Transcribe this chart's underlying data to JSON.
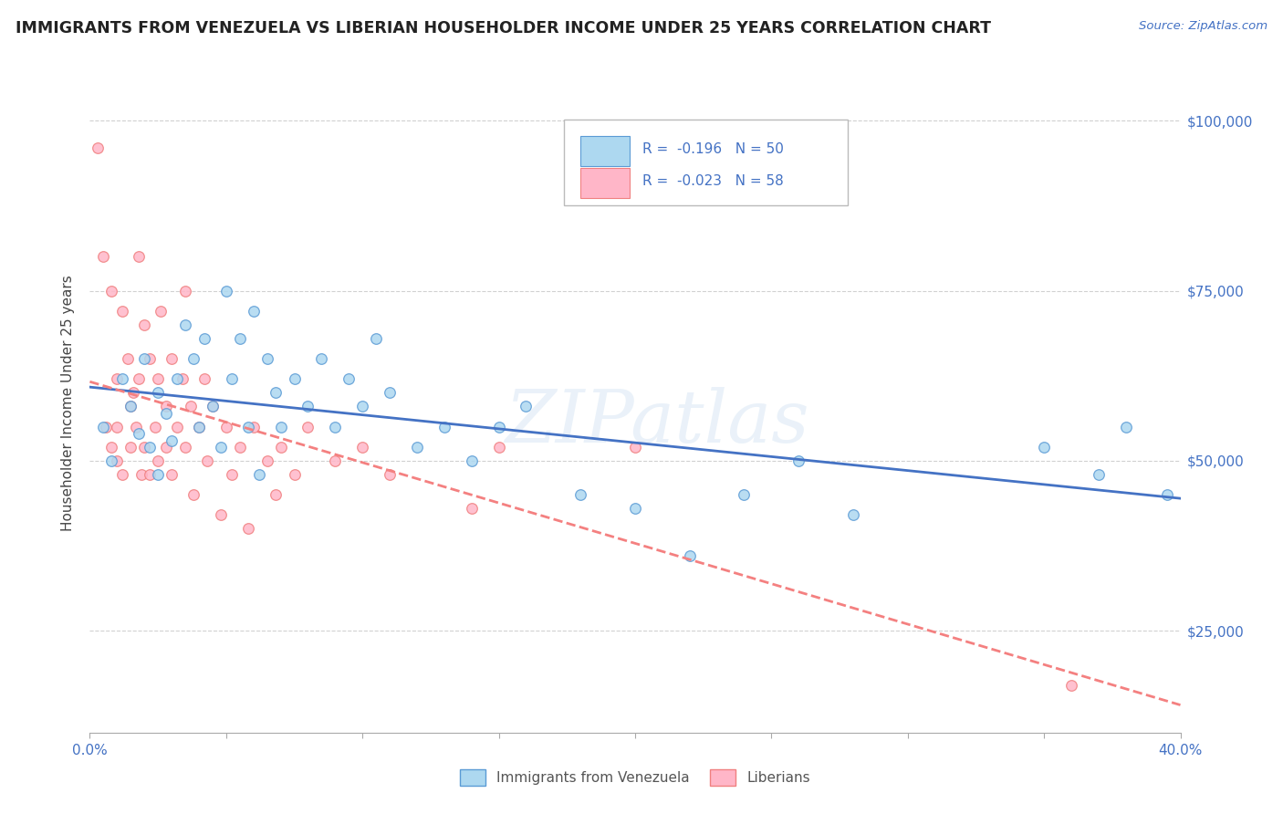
{
  "title": "IMMIGRANTS FROM VENEZUELA VS LIBERIAN HOUSEHOLDER INCOME UNDER 25 YEARS CORRELATION CHART",
  "source": "Source: ZipAtlas.com",
  "ylabel": "Householder Income Under 25 years",
  "xlim": [
    0.0,
    0.4
  ],
  "ylim": [
    10000,
    107000
  ],
  "yticks": [
    25000,
    50000,
    75000,
    100000
  ],
  "ytick_labels": [
    "$25,000",
    "$50,000",
    "$75,000",
    "$100,000"
  ],
  "xticks": [
    0.0,
    0.05,
    0.1,
    0.15,
    0.2,
    0.25,
    0.3,
    0.35,
    0.4
  ],
  "xtick_labels": [
    "0.0%",
    "",
    "",
    "",
    "",
    "",
    "",
    "",
    "40.0%"
  ],
  "background_color": "#ffffff",
  "grid_color": "#cccccc",
  "watermark": "ZIPatlas",
  "R_venezuela": -0.196,
  "N_venezuela": 50,
  "R_liberian": -0.023,
  "N_liberian": 58,
  "color_venezuela": "#add8f0",
  "color_liberian": "#ffb6c8",
  "edge_color_venezuela": "#5b9bd5",
  "edge_color_liberian": "#f08080",
  "line_color_venezuela": "#4472C4",
  "line_color_liberian": "#f48080",
  "venezuela_x": [
    0.005,
    0.008,
    0.012,
    0.015,
    0.018,
    0.02,
    0.022,
    0.025,
    0.025,
    0.028,
    0.03,
    0.032,
    0.035,
    0.038,
    0.04,
    0.042,
    0.045,
    0.048,
    0.05,
    0.052,
    0.055,
    0.058,
    0.06,
    0.062,
    0.065,
    0.068,
    0.07,
    0.075,
    0.08,
    0.085,
    0.09,
    0.095,
    0.1,
    0.105,
    0.11,
    0.12,
    0.13,
    0.14,
    0.15,
    0.16,
    0.18,
    0.2,
    0.22,
    0.24,
    0.26,
    0.28,
    0.35,
    0.37,
    0.38,
    0.395
  ],
  "venezuela_y": [
    55000,
    50000,
    62000,
    58000,
    54000,
    65000,
    52000,
    60000,
    48000,
    57000,
    53000,
    62000,
    70000,
    65000,
    55000,
    68000,
    58000,
    52000,
    75000,
    62000,
    68000,
    55000,
    72000,
    48000,
    65000,
    60000,
    55000,
    62000,
    58000,
    65000,
    55000,
    62000,
    58000,
    68000,
    60000,
    52000,
    55000,
    50000,
    55000,
    58000,
    45000,
    43000,
    36000,
    45000,
    50000,
    42000,
    52000,
    48000,
    55000,
    45000
  ],
  "liberian_x": [
    0.003,
    0.005,
    0.006,
    0.008,
    0.008,
    0.01,
    0.01,
    0.01,
    0.012,
    0.012,
    0.014,
    0.015,
    0.015,
    0.016,
    0.017,
    0.018,
    0.018,
    0.019,
    0.02,
    0.02,
    0.022,
    0.022,
    0.024,
    0.025,
    0.025,
    0.026,
    0.028,
    0.028,
    0.03,
    0.03,
    0.032,
    0.034,
    0.035,
    0.035,
    0.037,
    0.038,
    0.04,
    0.042,
    0.043,
    0.045,
    0.048,
    0.05,
    0.052,
    0.055,
    0.058,
    0.06,
    0.065,
    0.068,
    0.07,
    0.075,
    0.08,
    0.09,
    0.1,
    0.11,
    0.14,
    0.15,
    0.2,
    0.36
  ],
  "liberian_y": [
    96000,
    80000,
    55000,
    75000,
    52000,
    62000,
    55000,
    50000,
    72000,
    48000,
    65000,
    58000,
    52000,
    60000,
    55000,
    80000,
    62000,
    48000,
    70000,
    52000,
    65000,
    48000,
    55000,
    62000,
    50000,
    72000,
    58000,
    52000,
    65000,
    48000,
    55000,
    62000,
    75000,
    52000,
    58000,
    45000,
    55000,
    62000,
    50000,
    58000,
    42000,
    55000,
    48000,
    52000,
    40000,
    55000,
    50000,
    45000,
    52000,
    48000,
    55000,
    50000,
    52000,
    48000,
    43000,
    52000,
    52000,
    17000
  ]
}
